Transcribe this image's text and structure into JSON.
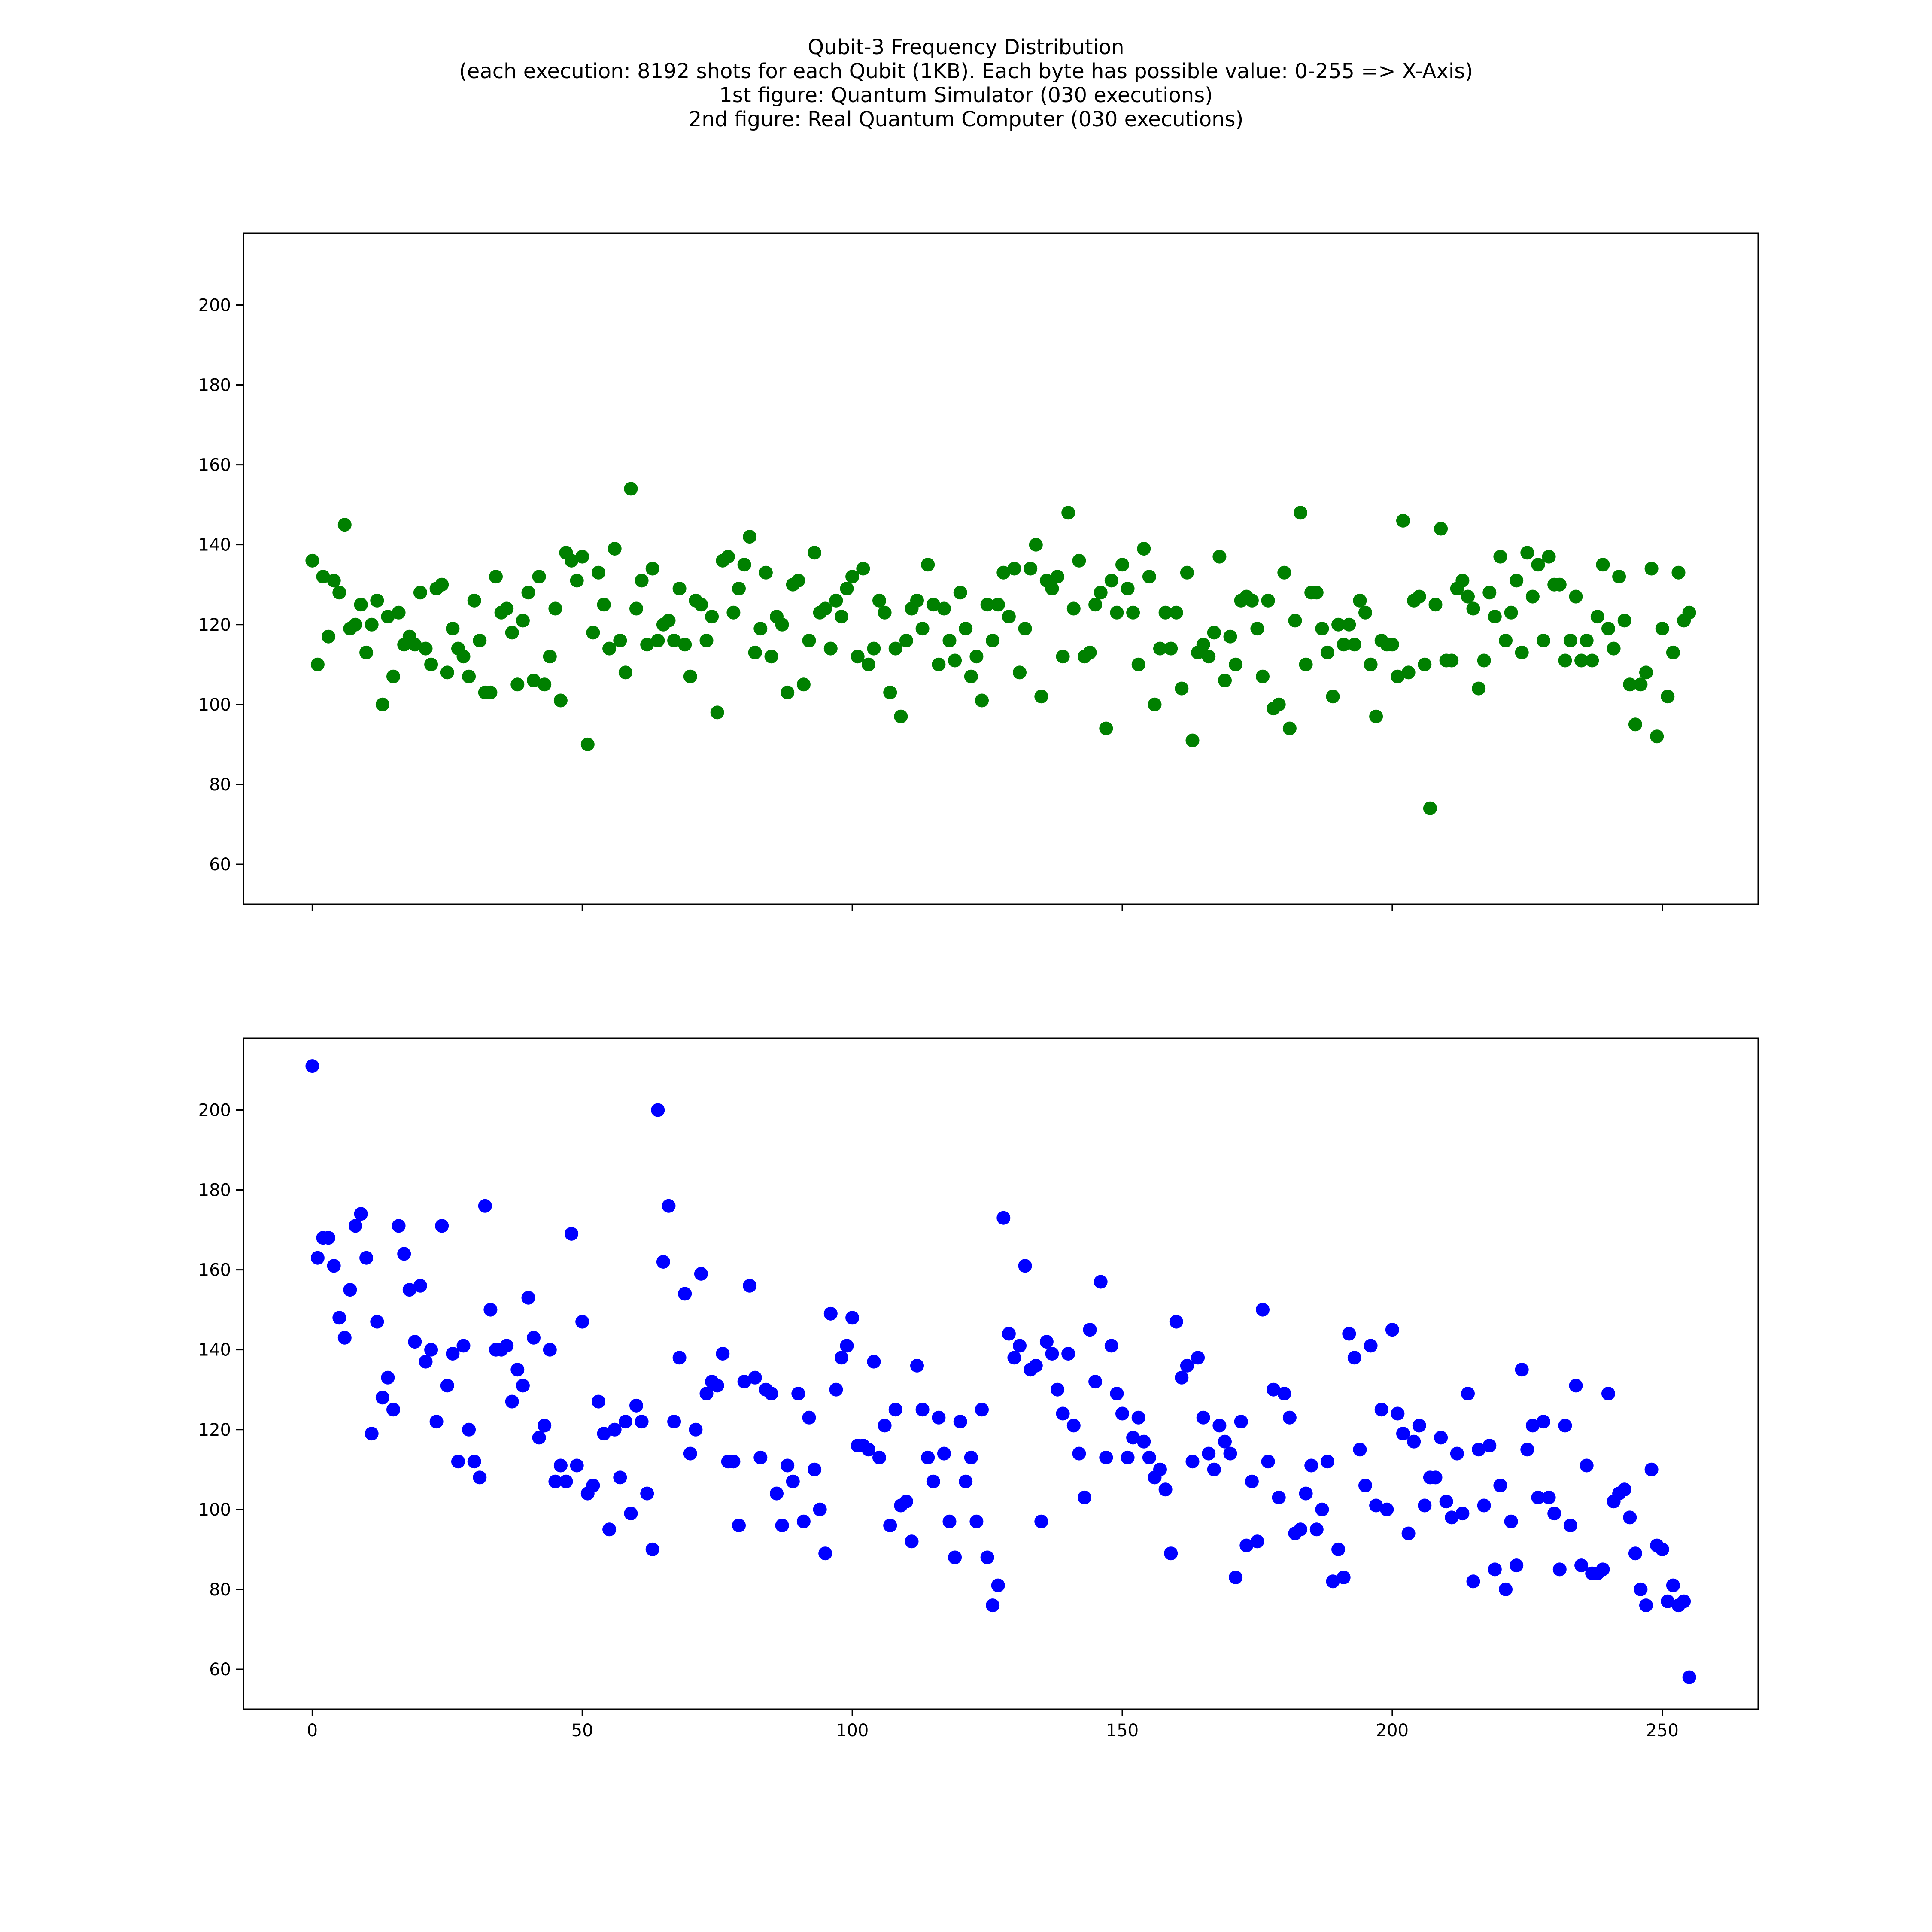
{
  "figure": {
    "title_lines": [
      "Qubit-3 Frequency Distribution",
      "(each execution: 8192 shots for each Qubit (1KB). Each byte has possible value: 0-255 => X-Axis)",
      "1st figure: Quantum Simulator (030 executions)",
      "2nd figure: Real Quantum Computer (030 executions)"
    ]
  },
  "chart_data": [
    {
      "type": "scatter",
      "title": "",
      "xlabel": "",
      "ylabel": "",
      "xlim": [
        -12.75,
        267.75
      ],
      "ylim": [
        50,
        218
      ],
      "xticks": [
        0,
        50,
        100,
        150,
        200,
        250
      ],
      "show_xtick_labels": false,
      "yticks": [
        60,
        80,
        100,
        120,
        140,
        160,
        180,
        200
      ],
      "grid": false,
      "color": "#008000",
      "series": [
        {
          "x": [
            0,
            1,
            2,
            3,
            4,
            5,
            6,
            7,
            8,
            9,
            10,
            11,
            12,
            13,
            14,
            15,
            16,
            17,
            18,
            19,
            20,
            21,
            22,
            23,
            24,
            25,
            26,
            27,
            28,
            29,
            30,
            31,
            32,
            33,
            34,
            35,
            36,
            37,
            38,
            39,
            40,
            41,
            42,
            43,
            44,
            45,
            46,
            47,
            48,
            49,
            50,
            51,
            52,
            53,
            54,
            55,
            56,
            57,
            58,
            59,
            60,
            61,
            62,
            63,
            64,
            65,
            66,
            67,
            68,
            69,
            70,
            71,
            72,
            73,
            74,
            75,
            76,
            77,
            78,
            79,
            80,
            81,
            82,
            83,
            84,
            85,
            86,
            87,
            88,
            89,
            90,
            91,
            92,
            93,
            94,
            95,
            96,
            97,
            98,
            99,
            100,
            101,
            102,
            103,
            104,
            105,
            106,
            107,
            108,
            109,
            110,
            111,
            112,
            113,
            114,
            115,
            116,
            117,
            118,
            119,
            120,
            121,
            122,
            123,
            124,
            125,
            126,
            127,
            128,
            129,
            130,
            131,
            132,
            133,
            134,
            135,
            136,
            137,
            138,
            139,
            140,
            141,
            142,
            143,
            144,
            145,
            146,
            147,
            148,
            149,
            150,
            151,
            152,
            153,
            154,
            155,
            156,
            157,
            158,
            159,
            160,
            161,
            162,
            163,
            164,
            165,
            166,
            167,
            168,
            169,
            170,
            171,
            172,
            173,
            174,
            175,
            176,
            177,
            178,
            179,
            180,
            181,
            182,
            183,
            184,
            185,
            186,
            187,
            188,
            189,
            190,
            191,
            192,
            193,
            194,
            195,
            196,
            197,
            198,
            199,
            200,
            201,
            202,
            203,
            204,
            205,
            206,
            207,
            208,
            209,
            210,
            211,
            212,
            213,
            214,
            215,
            216,
            217,
            218,
            219,
            220,
            221,
            222,
            223,
            224,
            225,
            226,
            227,
            228,
            229,
            230,
            231,
            232,
            233,
            234,
            235,
            236,
            237,
            238,
            239,
            240,
            241,
            242,
            243,
            244,
            245,
            246,
            247,
            248,
            249,
            250,
            251,
            252,
            253,
            254,
            255
          ],
          "y": [
            136,
            110,
            132,
            117,
            131,
            128,
            145,
            119,
            120,
            125,
            113,
            120,
            126,
            100,
            122,
            107,
            123,
            115,
            117,
            115,
            128,
            114,
            110,
            129,
            130,
            108,
            119,
            114,
            112,
            107,
            126,
            116,
            103,
            103,
            132,
            123,
            124,
            118,
            105,
            121,
            128,
            106,
            132,
            105,
            112,
            124,
            101,
            138,
            136,
            131,
            137,
            90,
            118,
            133,
            125,
            114,
            139,
            116,
            108,
            154,
            124,
            131,
            115,
            134,
            116,
            120,
            121,
            116,
            129,
            115,
            107,
            126,
            125,
            116,
            122,
            98,
            136,
            137,
            123,
            129,
            135,
            142,
            113,
            119,
            133,
            112,
            122,
            120,
            103,
            130,
            131,
            105,
            116,
            138,
            123,
            124,
            114,
            126,
            122,
            129,
            132,
            112,
            134,
            110,
            114,
            126,
            123,
            103,
            114,
            97,
            116,
            124,
            126,
            119,
            135,
            125,
            110,
            124,
            116,
            111,
            128,
            119,
            107,
            112,
            101,
            125,
            116,
            125,
            133,
            122,
            134,
            108,
            119,
            134,
            140,
            102,
            131,
            129,
            132,
            112,
            148,
            124,
            136,
            112,
            113,
            125,
            128,
            94,
            131,
            123,
            135,
            129,
            123,
            110,
            139,
            132,
            100,
            114,
            123,
            114,
            123,
            104,
            133,
            91,
            113,
            115,
            112,
            118,
            137,
            106,
            117,
            110,
            126,
            127,
            126,
            119,
            107,
            126,
            99,
            100,
            133,
            94,
            121,
            148,
            110,
            128,
            128,
            119,
            113,
            102,
            120,
            115,
            120,
            115,
            126,
            123,
            110,
            97,
            116,
            115,
            115,
            107,
            146,
            108,
            126,
            127,
            110,
            74,
            125,
            144,
            111,
            111,
            129,
            131,
            127,
            124,
            104,
            111,
            128,
            122,
            137,
            116,
            123,
            131,
            113,
            138,
            127,
            135,
            116,
            137,
            130,
            130,
            111,
            116,
            127,
            111,
            116,
            111,
            122,
            135,
            119,
            114,
            132,
            121,
            105,
            95,
            105,
            108,
            134,
            92,
            119,
            102,
            113,
            133,
            121,
            123
          ]
        }
      ]
    },
    {
      "type": "scatter",
      "title": "",
      "xlabel": "",
      "ylabel": "",
      "xlim": [
        -12.75,
        267.75
      ],
      "ylim": [
        50,
        218
      ],
      "xticks": [
        0,
        50,
        100,
        150,
        200,
        250
      ],
      "show_xtick_labels": true,
      "yticks": [
        60,
        80,
        100,
        120,
        140,
        160,
        180,
        200
      ],
      "grid": false,
      "color": "#0000ff",
      "series": [
        {
          "x": [
            0,
            1,
            2,
            3,
            4,
            5,
            6,
            7,
            8,
            9,
            10,
            11,
            12,
            13,
            14,
            15,
            16,
            17,
            18,
            19,
            20,
            21,
            22,
            23,
            24,
            25,
            26,
            27,
            28,
            29,
            30,
            31,
            32,
            33,
            34,
            35,
            36,
            37,
            38,
            39,
            40,
            41,
            42,
            43,
            44,
            45,
            46,
            47,
            48,
            49,
            50,
            51,
            52,
            53,
            54,
            55,
            56,
            57,
            58,
            59,
            60,
            61,
            62,
            63,
            64,
            65,
            66,
            67,
            68,
            69,
            70,
            71,
            72,
            73,
            74,
            75,
            76,
            77,
            78,
            79,
            80,
            81,
            82,
            83,
            84,
            85,
            86,
            87,
            88,
            89,
            90,
            91,
            92,
            93,
            94,
            95,
            96,
            97,
            98,
            99,
            100,
            101,
            102,
            103,
            104,
            105,
            106,
            107,
            108,
            109,
            110,
            111,
            112,
            113,
            114,
            115,
            116,
            117,
            118,
            119,
            120,
            121,
            122,
            123,
            124,
            125,
            126,
            127,
            128,
            129,
            130,
            131,
            132,
            133,
            134,
            135,
            136,
            137,
            138,
            139,
            140,
            141,
            142,
            143,
            144,
            145,
            146,
            147,
            148,
            149,
            150,
            151,
            152,
            153,
            154,
            155,
            156,
            157,
            158,
            159,
            160,
            161,
            162,
            163,
            164,
            165,
            166,
            167,
            168,
            169,
            170,
            171,
            172,
            173,
            174,
            175,
            176,
            177,
            178,
            179,
            180,
            181,
            182,
            183,
            184,
            185,
            186,
            187,
            188,
            189,
            190,
            191,
            192,
            193,
            194,
            195,
            196,
            197,
            198,
            199,
            200,
            201,
            202,
            203,
            204,
            205,
            206,
            207,
            208,
            209,
            210,
            211,
            212,
            213,
            214,
            215,
            216,
            217,
            218,
            219,
            220,
            221,
            222,
            223,
            224,
            225,
            226,
            227,
            228,
            229,
            230,
            231,
            232,
            233,
            234,
            235,
            236,
            237,
            238,
            239,
            240,
            241,
            242,
            243,
            244,
            245,
            246,
            247,
            248,
            249,
            250,
            251,
            252,
            253,
            254,
            255
          ],
          "y": [
            211,
            163,
            168,
            168,
            161,
            148,
            143,
            155,
            171,
            174,
            163,
            119,
            147,
            128,
            133,
            125,
            171,
            164,
            155,
            142,
            156,
            137,
            140,
            122,
            171,
            131,
            139,
            112,
            141,
            120,
            112,
            108,
            176,
            150,
            140,
            140,
            141,
            127,
            135,
            131,
            153,
            143,
            118,
            121,
            140,
            107,
            111,
            107,
            169,
            111,
            147,
            104,
            106,
            127,
            119,
            95,
            120,
            108,
            122,
            99,
            126,
            122,
            104,
            90,
            200,
            162,
            176,
            122,
            138,
            154,
            114,
            120,
            159,
            129,
            132,
            131,
            139,
            112,
            112,
            96,
            132,
            156,
            133,
            113,
            130,
            129,
            104,
            96,
            111,
            107,
            129,
            97,
            123,
            110,
            100,
            89,
            149,
            130,
            138,
            141,
            148,
            116,
            116,
            115,
            137,
            113,
            121,
            96,
            125,
            101,
            102,
            92,
            136,
            125,
            113,
            107,
            123,
            114,
            97,
            88,
            122,
            107,
            113,
            97,
            125,
            88,
            76,
            81,
            173,
            144,
            138,
            141,
            161,
            135,
            136,
            97,
            142,
            139,
            130,
            124,
            139,
            121,
            114,
            103,
            145,
            132,
            157,
            113,
            141,
            129,
            124,
            113,
            118,
            123,
            117,
            113,
            108,
            110,
            105,
            89,
            147,
            133,
            136,
            112,
            138,
            123,
            114,
            110,
            121,
            117,
            114,
            83,
            122,
            91,
            107,
            92,
            150,
            112,
            130,
            103,
            129,
            123,
            94,
            95,
            104,
            111,
            95,
            100,
            112,
            82,
            90,
            83,
            144,
            138,
            115,
            106,
            141,
            101,
            125,
            100,
            145,
            124,
            119,
            94,
            117,
            121,
            101,
            108,
            108,
            118,
            102,
            98,
            114,
            99,
            129,
            82,
            115,
            101,
            116,
            85,
            106,
            80,
            97,
            86,
            135,
            115,
            121,
            103,
            122,
            103,
            99,
            85,
            121,
            96,
            131,
            86,
            111,
            84,
            84,
            85,
            129,
            102,
            104,
            105,
            98,
            89,
            80,
            76,
            110,
            91,
            90,
            77,
            81,
            76,
            77,
            58
          ]
        }
      ]
    }
  ]
}
